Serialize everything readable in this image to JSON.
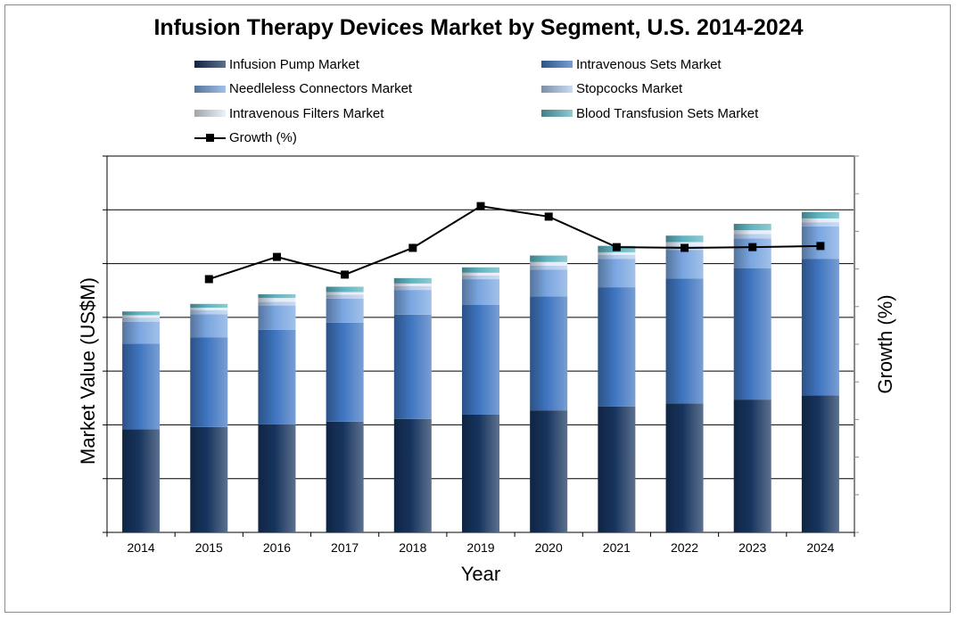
{
  "chart_data": {
    "type": "bar",
    "stacked": true,
    "title": "Infusion Therapy Devices Market by Segment, U.S. 2014-2024",
    "xlabel": "Year",
    "ylabel": "Market Value (US$M)",
    "y2label": "Growth (%)",
    "y_tick_labels_shown": false,
    "y2_tick_labels_shown": false,
    "ylim": [
      0,
      7
    ],
    "y2lim": [
      0,
      10
    ],
    "grid": "horizontal",
    "legend_position": "top",
    "categories": [
      "2014",
      "2015",
      "2016",
      "2017",
      "2018",
      "2019",
      "2020",
      "2021",
      "2022",
      "2023",
      "2024"
    ],
    "series": [
      {
        "name": "Infusion Pump Market",
        "color": "#17345e",
        "values": [
          1.92,
          1.96,
          2.01,
          2.06,
          2.11,
          2.19,
          2.27,
          2.34,
          2.4,
          2.47,
          2.55
        ]
      },
      {
        "name": "Intravenous Sets Market",
        "color": "#3f75c0",
        "values": [
          1.59,
          1.67,
          1.76,
          1.84,
          1.94,
          2.04,
          2.12,
          2.22,
          2.32,
          2.44,
          2.54
        ]
      },
      {
        "name": "Needleless Connectors Market",
        "color": "#7aa6e0",
        "values": [
          0.41,
          0.43,
          0.45,
          0.45,
          0.46,
          0.48,
          0.5,
          0.53,
          0.53,
          0.56,
          0.6
        ]
      },
      {
        "name": "Stopcocks Market",
        "color": "#b3cbee",
        "values": [
          0.07,
          0.07,
          0.07,
          0.07,
          0.07,
          0.07,
          0.07,
          0.07,
          0.08,
          0.08,
          0.08
        ]
      },
      {
        "name": "Intravenous Filters Market",
        "color": "#e2ebf7",
        "values": [
          0.05,
          0.05,
          0.07,
          0.05,
          0.05,
          0.05,
          0.07,
          0.05,
          0.07,
          0.07,
          0.07
        ]
      },
      {
        "name": "Blood Transfusion Sets Market",
        "color": "#5fb3c0",
        "values": [
          0.07,
          0.07,
          0.07,
          0.1,
          0.1,
          0.1,
          0.12,
          0.12,
          0.12,
          0.12,
          0.12
        ]
      }
    ],
    "line_series": {
      "name": "Growth (%)",
      "axis": "right",
      "color": "#000000",
      "values": [
        null,
        6.73,
        7.32,
        6.85,
        7.56,
        8.67,
        8.39,
        7.58,
        7.56,
        7.58,
        7.61
      ]
    }
  }
}
